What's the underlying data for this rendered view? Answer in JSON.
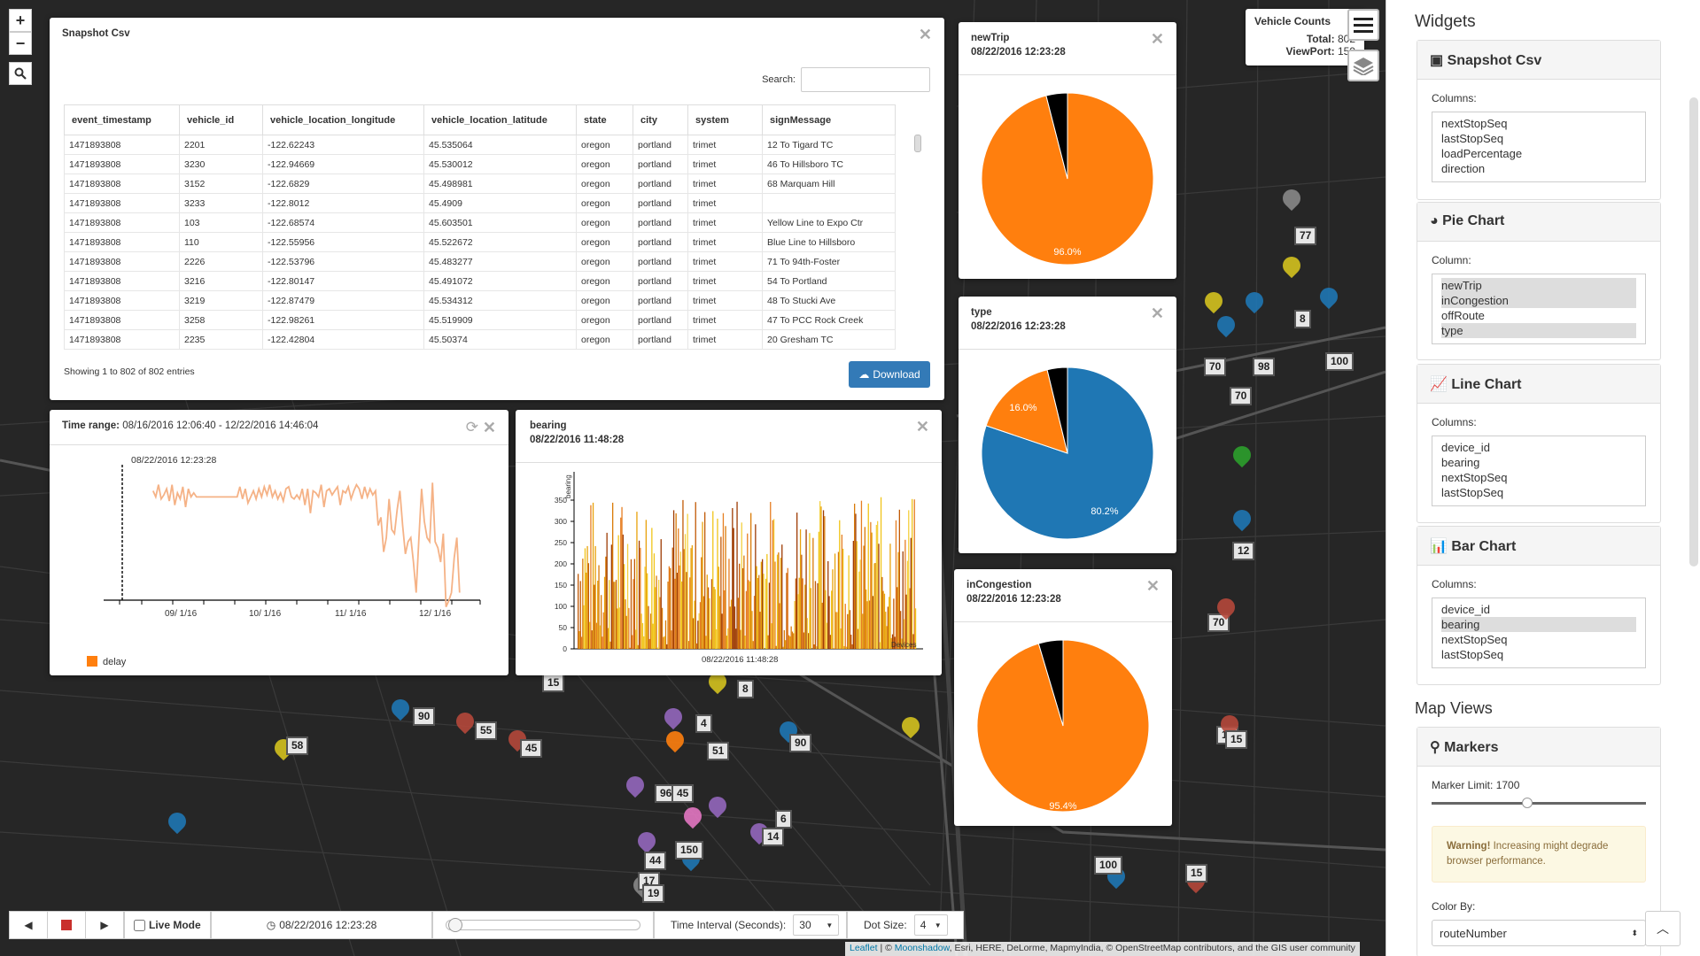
{
  "colors": {
    "orange": "#ff7f0e",
    "blue": "#1f77b4",
    "black": "#000000",
    "line": "#f5b286",
    "accent": "#337ab7"
  },
  "map_controls": {
    "zoom_in": "+",
    "zoom_out": "−",
    "search_icon": "search-icon"
  },
  "snapshot": {
    "title": "Snapshot Csv",
    "search_label": "Search:",
    "search_value": "",
    "columns": [
      "event_timestamp",
      "vehicle_id",
      "vehicle_location_longitude",
      "vehicle_location_latitude",
      "state",
      "city",
      "system",
      "signMessage"
    ],
    "rows": [
      [
        "1471893808",
        "2201",
        "-122.62243",
        "45.535064",
        "oregon",
        "portland",
        "trimet",
        "12 To Tigard TC"
      ],
      [
        "1471893808",
        "3230",
        "-122.94669",
        "45.530012",
        "oregon",
        "portland",
        "trimet",
        "46 To Hillsboro TC"
      ],
      [
        "1471893808",
        "3152",
        "-122.6829",
        "45.498981",
        "oregon",
        "portland",
        "trimet",
        "68 Marquam Hill"
      ],
      [
        "1471893808",
        "3233",
        "-122.8012",
        "45.4909",
        "oregon",
        "portland",
        "trimet",
        ""
      ],
      [
        "1471893808",
        "103",
        "-122.68574",
        "45.603501",
        "oregon",
        "portland",
        "trimet",
        "Yellow Line to Expo Ctr"
      ],
      [
        "1471893808",
        "110",
        "-122.55956",
        "45.522672",
        "oregon",
        "portland",
        "trimet",
        "Blue Line to Hillsboro"
      ],
      [
        "1471893808",
        "2226",
        "-122.53796",
        "45.483277",
        "oregon",
        "portland",
        "trimet",
        "71 To 94th-Foster"
      ],
      [
        "1471893808",
        "3216",
        "-122.80147",
        "45.491072",
        "oregon",
        "portland",
        "trimet",
        "54 To Portland"
      ],
      [
        "1471893808",
        "3219",
        "-122.87479",
        "45.534312",
        "oregon",
        "portland",
        "trimet",
        "48 To Stucki Ave"
      ],
      [
        "1471893808",
        "3258",
        "-122.98261",
        "45.519909",
        "oregon",
        "portland",
        "trimet",
        "47 To PCC Rock Creek"
      ],
      [
        "1471893808",
        "2235",
        "-122.42804",
        "45.50374",
        "oregon",
        "portland",
        "trimet",
        "20 Gresham TC"
      ]
    ],
    "footer": "Showing 1 to 802 of 802 entries",
    "download_label": "Download"
  },
  "time_range": {
    "title_label": "Time range:",
    "title_value": "08/16/2016 12:06:40 - 12/22/2016 14:46:04",
    "marker_label": "08/22/2016 12:23:28",
    "ticks": [
      "09/ 1/16",
      "10/ 1/16",
      "11/ 1/16",
      "12/ 1/16"
    ],
    "legend": "delay"
  },
  "bearing": {
    "title": "bearing",
    "subtitle": "08/22/2016 11:48:28",
    "ylabel": "bearing",
    "xlabel": "08/22/2016 11:48:28",
    "x_end_label": "Devices",
    "yticks": [
      "0",
      "50",
      "100",
      "150",
      "200",
      "250",
      "300",
      "350"
    ]
  },
  "pies": [
    {
      "title": "newTrip",
      "subtitle": "08/22/2016 12:23:28",
      "label_main": "96.0%"
    },
    {
      "title": "type",
      "subtitle": "08/22/2016 12:23:28",
      "label_main": "80.2%",
      "label_second": "16.0%"
    },
    {
      "title": "inCongestion",
      "subtitle": "08/22/2016 12:23:28",
      "label_main": "95.4%"
    }
  ],
  "chart_data": [
    {
      "type": "pie",
      "title": "newTrip",
      "slices": [
        {
          "value": 96.0,
          "color": "#ff7f0e"
        },
        {
          "value": 4.0,
          "color": "#000000"
        }
      ]
    },
    {
      "type": "pie",
      "title": "type",
      "slices": [
        {
          "value": 80.2,
          "color": "#1f77b4"
        },
        {
          "value": 16.0,
          "color": "#ff7f0e"
        },
        {
          "value": 3.8,
          "color": "#000000"
        }
      ]
    },
    {
      "type": "pie",
      "title": "inCongestion",
      "slices": [
        {
          "value": 95.4,
          "color": "#ff7f0e"
        },
        {
          "value": 4.6,
          "color": "#000000"
        }
      ]
    },
    {
      "type": "line",
      "title": "Time range",
      "series": [
        {
          "name": "delay",
          "values": [
            5,
            8,
            2,
            9,
            7,
            4,
            10,
            2,
            12,
            6,
            9,
            3,
            13,
            4,
            8,
            6,
            8,
            8,
            8,
            8,
            8,
            8,
            8,
            8,
            8,
            8,
            8,
            8,
            8,
            8,
            8,
            8,
            3,
            9,
            4,
            11,
            8,
            5,
            9,
            4,
            8,
            3,
            7,
            2,
            8,
            5,
            9,
            6,
            10,
            4,
            3,
            8,
            9,
            7,
            9,
            4,
            12,
            4,
            16,
            5,
            6,
            8,
            2,
            13,
            5,
            4,
            7,
            5,
            3,
            12,
            5,
            6,
            3,
            9,
            5,
            2,
            4,
            9,
            3,
            8,
            4,
            7,
            5,
            22,
            18,
            35,
            28,
            9,
            24,
            26,
            14,
            5,
            22,
            36,
            30,
            28,
            40,
            55,
            28,
            4,
            20,
            28,
            30,
            1,
            30,
            33,
            40,
            26,
            62,
            59,
            55,
            38,
            28,
            55
          ]
        }
      ]
    },
    {
      "type": "bar",
      "title": "bearing",
      "ylim": [
        0,
        350
      ]
    }
  ],
  "vehicle_counts": {
    "title": "Vehicle Counts",
    "total_label": "Total:",
    "total": "802",
    "viewport_label": "ViewPort:",
    "viewport": "159"
  },
  "sidebar": {
    "widgets_title": "Widgets",
    "snapshot": {
      "title": "Snapshot Csv",
      "columns_label": "Columns:",
      "items": [
        "nextStopSeq",
        "lastStopSeq",
        "loadPercentage",
        "direction"
      ]
    },
    "pie": {
      "title": "Pie Chart",
      "column_label": "Column:",
      "items": [
        "newTrip",
        "inCongestion",
        "offRoute",
        "type"
      ]
    },
    "line": {
      "title": "Line Chart",
      "columns_label": "Columns:",
      "items": [
        "device_id",
        "bearing",
        "nextStopSeq",
        "lastStopSeq"
      ]
    },
    "bar": {
      "title": "Bar Chart",
      "columns_label": "Columns:",
      "items": [
        "device_id",
        "bearing",
        "nextStopSeq",
        "lastStopSeq"
      ]
    },
    "map_views_title": "Map Views",
    "markers": {
      "title": "Markers",
      "limit_label": "Marker Limit:",
      "limit_value": "1700",
      "limit_fraction": 0.42,
      "warning_strong": "Warning!",
      "warning_text": "Increasing might degrade browser performance.",
      "color_by_label": "Color By:",
      "color_by_value": "routeNumber"
    }
  },
  "bottom": {
    "live_mode": "Live Mode",
    "timestamp": "08/22/2016 12:23:28",
    "interval_label": "Time Interval (Seconds):",
    "interval_value": "30",
    "dot_label": "Dot Size:",
    "dot_value": "4"
  },
  "attribution": {
    "leaflet": "Leaflet",
    "sep": " | © ",
    "moonshadow": "Moonshadow",
    "rest": ", Esri, HERE, DeLorme, MapmyIndia, © OpenStreetMap contributors, and the GIS user community"
  },
  "map_markers": [
    "77",
    "8",
    "70",
    "98",
    "100",
    "70",
    "12",
    "70",
    "15",
    "15",
    "15",
    "100",
    "58",
    "90",
    "55",
    "45",
    "8",
    "4",
    "51",
    "96",
    "6",
    "45",
    "14",
    "90",
    "44",
    "150",
    "17",
    "19",
    "15"
  ]
}
